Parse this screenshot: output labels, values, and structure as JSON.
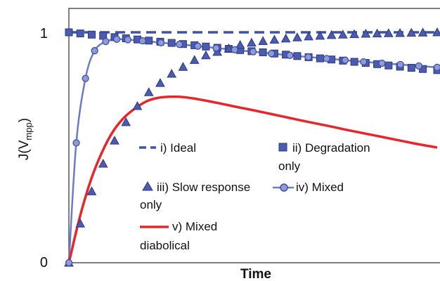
{
  "chart_data": {
    "type": "line",
    "title": "",
    "xlabel": "Time",
    "ylabel_main": "J(V",
    "ylabel_sub": "mpp",
    "ylabel_end": ")",
    "xlim": [
      0,
      1
    ],
    "ylim": [
      0,
      1
    ],
    "y_ticks": [
      {
        "value": 0,
        "label": "0"
      },
      {
        "value": 1,
        "label": "1"
      }
    ],
    "grid": false,
    "legend_position": "center",
    "series": [
      {
        "name": "i) Ideal",
        "name_line2": "",
        "style": "dashed",
        "color": "#3f53a6",
        "x": [
          0,
          0.1,
          0.2,
          0.3,
          0.4,
          0.5,
          0.6,
          0.7,
          0.8,
          0.9,
          1.0
        ],
        "y": [
          1,
          1,
          1,
          1,
          1,
          1,
          1,
          1,
          1,
          1,
          1
        ]
      },
      {
        "name": "ii) Degradation",
        "name_line2": "only",
        "style": "square-markers",
        "color": "#4a5bb0",
        "x": [
          0.0,
          0.031,
          0.062,
          0.093,
          0.124,
          0.155,
          0.186,
          0.217,
          0.248,
          0.279,
          0.31,
          0.341,
          0.372,
          0.403,
          0.434,
          0.465,
          0.496,
          0.527,
          0.558,
          0.589,
          0.62,
          0.651,
          0.682,
          0.713,
          0.744,
          0.775,
          0.806,
          0.837,
          0.868,
          0.899,
          0.93,
          0.961,
          1.0
        ],
        "y": [
          1.0,
          0.995,
          0.99,
          0.985,
          0.979,
          0.974,
          0.969,
          0.964,
          0.959,
          0.954,
          0.949,
          0.944,
          0.938,
          0.933,
          0.928,
          0.923,
          0.918,
          0.913,
          0.908,
          0.903,
          0.897,
          0.892,
          0.887,
          0.882,
          0.877,
          0.872,
          0.867,
          0.862,
          0.856,
          0.851,
          0.846,
          0.841,
          0.836
        ]
      },
      {
        "name": "iii) Slow response",
        "name_line2": "only",
        "style": "triangle-markers",
        "color": "#4a5bb0",
        "x": [
          0.0,
          0.031,
          0.062,
          0.093,
          0.124,
          0.155,
          0.186,
          0.217,
          0.248,
          0.279,
          0.31,
          0.341,
          0.372,
          0.403,
          0.434,
          0.465,
          0.496,
          0.527,
          0.558,
          0.589,
          0.62,
          0.651,
          0.682,
          0.713,
          0.744,
          0.775,
          0.806,
          0.837,
          0.868,
          0.899,
          0.93,
          0.961,
          1.0
        ],
        "y": [
          0.0,
          0.17,
          0.31,
          0.43,
          0.53,
          0.61,
          0.68,
          0.74,
          0.78,
          0.82,
          0.85,
          0.88,
          0.9,
          0.915,
          0.93,
          0.945,
          0.955,
          0.962,
          0.968,
          0.973,
          0.978,
          0.982,
          0.985,
          0.988,
          0.99,
          0.992,
          0.994,
          0.995,
          0.996,
          0.997,
          0.998,
          0.999,
          1.0
        ]
      },
      {
        "name": "iv) Mixed",
        "name_line2": "",
        "style": "line-circle-markers",
        "color": "#6a7bc8",
        "x": [
          0.0,
          0.02,
          0.045,
          0.07,
          0.1,
          0.13,
          0.16,
          0.2,
          0.25,
          0.3,
          0.35,
          0.4,
          0.45,
          0.5,
          0.55,
          0.6,
          0.65,
          0.7,
          0.75,
          0.8,
          0.85,
          0.9,
          0.95,
          1.0
        ],
        "y": [
          0.0,
          0.52,
          0.8,
          0.92,
          0.96,
          0.97,
          0.968,
          0.963,
          0.955,
          0.948,
          0.94,
          0.932,
          0.924,
          0.916,
          0.908,
          0.9,
          0.893,
          0.886,
          0.879,
          0.872,
          0.866,
          0.86,
          0.854,
          0.848
        ]
      },
      {
        "name": "v) Mixed",
        "name_line2": "diabolical",
        "style": "solid",
        "color": "#e8262a",
        "x": [
          0.0,
          0.03,
          0.06,
          0.09,
          0.12,
          0.15,
          0.18,
          0.21,
          0.24,
          0.27,
          0.3,
          0.33,
          0.36,
          0.39,
          0.42,
          0.45,
          0.5,
          0.55,
          0.6,
          0.65,
          0.7,
          0.75,
          0.8,
          0.85,
          0.9,
          0.95,
          1.0
        ],
        "y": [
          0.0,
          0.2,
          0.36,
          0.48,
          0.57,
          0.63,
          0.67,
          0.7,
          0.715,
          0.72,
          0.72,
          0.715,
          0.707,
          0.698,
          0.688,
          0.678,
          0.662,
          0.645,
          0.628,
          0.611,
          0.595,
          0.578,
          0.562,
          0.546,
          0.53,
          0.514,
          0.5
        ]
      }
    ]
  }
}
